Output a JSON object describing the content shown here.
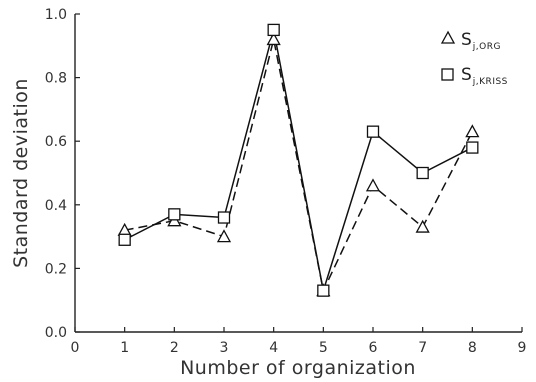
{
  "chart_data": {
    "type": "line",
    "xlabel": "Number of organization",
    "ylabel": "Standard deviation",
    "xlim": [
      0,
      9
    ],
    "ylim": [
      0.0,
      1.0
    ],
    "x_ticks": [
      "0",
      "1",
      "2",
      "3",
      "4",
      "5",
      "6",
      "7",
      "8",
      "9"
    ],
    "y_ticks": [
      "0.0",
      "0.2",
      "0.4",
      "0.6",
      "0.8",
      "1.0"
    ],
    "x": [
      1,
      2,
      3,
      4,
      5,
      6,
      7,
      8
    ],
    "series": [
      {
        "name": "S_j,ORG",
        "legend_main": "S",
        "legend_sub": "j,ORG",
        "marker": "triangle",
        "line_style": "dashed",
        "values": [
          0.32,
          0.35,
          0.3,
          0.92,
          0.13,
          0.46,
          0.33,
          0.63
        ]
      },
      {
        "name": "S_j,KRISS",
        "legend_main": "S",
        "legend_sub": "j,KRISS",
        "marker": "square",
        "line_style": "solid",
        "values": [
          0.29,
          0.37,
          0.36,
          0.95,
          0.13,
          0.63,
          0.5,
          0.58
        ]
      }
    ],
    "legend_position": "top-right",
    "grid": false
  }
}
